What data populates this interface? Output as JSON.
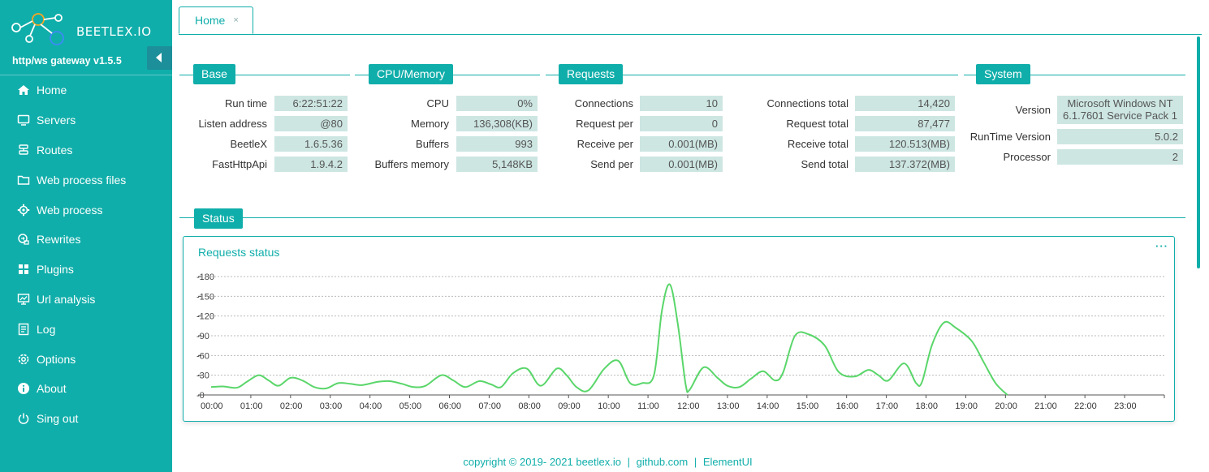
{
  "app": {
    "logo_text": "BEETLEX.IO",
    "version": "http/ws gateway v1.5.5"
  },
  "sidebar": {
    "items": [
      {
        "label": "Home",
        "icon": "home-icon"
      },
      {
        "label": "Servers",
        "icon": "monitor-icon"
      },
      {
        "label": "Routes",
        "icon": "routes-icon"
      },
      {
        "label": "Web process files",
        "icon": "folder-icon"
      },
      {
        "label": "Web process",
        "icon": "gear-icon"
      },
      {
        "label": "Rewrites",
        "icon": "rewrite-icon"
      },
      {
        "label": "Plugins",
        "icon": "plugins-icon"
      },
      {
        "label": "Url analysis",
        "icon": "analysis-icon"
      },
      {
        "label": "Log",
        "icon": "log-icon"
      },
      {
        "label": "Options",
        "icon": "options-icon"
      },
      {
        "label": "About",
        "icon": "info-icon"
      },
      {
        "label": "Sing out",
        "icon": "power-icon"
      }
    ]
  },
  "tabs": [
    {
      "label": "Home",
      "close": "×"
    }
  ],
  "panels": {
    "base": {
      "title": "Base",
      "rows": [
        {
          "label": "Run time",
          "value": "6:22:51:22"
        },
        {
          "label": "Listen address",
          "value": "@80"
        },
        {
          "label": "BeetleX",
          "value": "1.6.5.36"
        },
        {
          "label": "FastHttpApi",
          "value": "1.9.4.2"
        }
      ]
    },
    "cpu": {
      "title": "CPU/Memory",
      "rows": [
        {
          "label": "CPU",
          "value": "0%"
        },
        {
          "label": "Memory",
          "value": "136,308(KB)"
        },
        {
          "label": "Buffers",
          "value": "993"
        },
        {
          "label": "Buffers memory",
          "value": "5,148KB"
        }
      ]
    },
    "requests": {
      "title": "Requests",
      "rows": [
        {
          "label": "Connections",
          "value": "10"
        },
        {
          "label": "Request per",
          "value": "0"
        },
        {
          "label": "Receive per",
          "value": "0.001(MB)"
        },
        {
          "label": "Send per",
          "value": "0.001(MB)"
        }
      ],
      "totals": [
        {
          "label": "Connections total",
          "value": "14,420"
        },
        {
          "label": "Request total",
          "value": "87,477"
        },
        {
          "label": "Receive total",
          "value": "120.513(MB)"
        },
        {
          "label": "Send total",
          "value": "137.372(MB)"
        }
      ]
    },
    "system": {
      "title": "System",
      "rows": [
        {
          "label": "Version",
          "value_line1": "Microsoft Windows NT",
          "value_line2": "6.1.7601 Service Pack 1"
        },
        {
          "label": "RunTime Version",
          "value": "5.0.2"
        },
        {
          "label": "Processor",
          "value": "2"
        }
      ]
    },
    "status": {
      "title": "Status"
    }
  },
  "chart_data": {
    "type": "line",
    "title": "Requests status",
    "menu_icon": "···",
    "xlabel": "",
    "ylabel": "",
    "ylim": [
      0,
      180
    ],
    "yticks": [
      0,
      30,
      60,
      90,
      120,
      150,
      180
    ],
    "grid": true,
    "categories": [
      "00:00",
      "01:00",
      "02:00",
      "03:00",
      "04:00",
      "05:00",
      "06:00",
      "07:00",
      "08:00",
      "09:00",
      "10:00",
      "11:00",
      "12:00",
      "13:00",
      "14:00",
      "15:00",
      "16:00",
      "17:00",
      "18:00",
      "19:00",
      "20:00",
      "21:00",
      "22:00",
      "23:00"
    ],
    "series": [
      {
        "name": "Requests",
        "color": "#5ad66a",
        "points": [
          [
            0.0,
            12
          ],
          [
            0.3,
            13
          ],
          [
            0.65,
            11
          ],
          [
            0.9,
            20
          ],
          [
            1.2,
            30
          ],
          [
            1.45,
            22
          ],
          [
            1.7,
            14
          ],
          [
            2.0,
            26
          ],
          [
            2.3,
            22
          ],
          [
            2.6,
            12
          ],
          [
            2.9,
            10
          ],
          [
            3.2,
            18
          ],
          [
            3.5,
            17
          ],
          [
            3.8,
            15
          ],
          [
            4.2,
            20
          ],
          [
            4.5,
            21
          ],
          [
            4.8,
            17
          ],
          [
            5.1,
            12
          ],
          [
            5.4,
            14
          ],
          [
            5.8,
            30
          ],
          [
            6.1,
            22
          ],
          [
            6.4,
            12
          ],
          [
            6.75,
            21
          ],
          [
            7.05,
            16
          ],
          [
            7.3,
            12
          ],
          [
            7.6,
            33
          ],
          [
            7.95,
            40
          ],
          [
            8.3,
            14
          ],
          [
            8.7,
            40
          ],
          [
            8.95,
            30
          ],
          [
            9.2,
            12
          ],
          [
            9.5,
            7
          ],
          [
            9.9,
            40
          ],
          [
            10.25,
            52
          ],
          [
            10.55,
            18
          ],
          [
            10.85,
            18
          ],
          [
            11.15,
            30
          ],
          [
            11.35,
            128
          ],
          [
            11.55,
            168
          ],
          [
            11.75,
            108
          ],
          [
            11.95,
            15
          ],
          [
            12.05,
            8
          ],
          [
            12.4,
            42
          ],
          [
            12.75,
            26
          ],
          [
            13.0,
            14
          ],
          [
            13.3,
            12
          ],
          [
            13.6,
            25
          ],
          [
            13.9,
            36
          ],
          [
            14.2,
            22
          ],
          [
            14.4,
            34
          ],
          [
            14.7,
            90
          ],
          [
            15.05,
            92
          ],
          [
            15.45,
            75
          ],
          [
            15.8,
            35
          ],
          [
            16.2,
            28
          ],
          [
            16.55,
            38
          ],
          [
            16.8,
            30
          ],
          [
            17.05,
            22
          ],
          [
            17.45,
            48
          ],
          [
            17.75,
            18
          ],
          [
            17.9,
            20
          ],
          [
            18.15,
            76
          ],
          [
            18.45,
            110
          ],
          [
            18.75,
            102
          ],
          [
            19.15,
            82
          ],
          [
            19.45,
            50
          ],
          [
            19.75,
            18
          ],
          [
            20.05,
            0
          ]
        ]
      }
    ]
  },
  "footer": {
    "copyright": "copyright © 2019- 2021 beetlex.io",
    "sep1": "|",
    "link1": "github.com",
    "sep2": "|",
    "link2": "ElementUI"
  },
  "colors": {
    "accent": "#10aeaa",
    "value_bg": "#cde6e2",
    "line": "#5ad66a"
  }
}
